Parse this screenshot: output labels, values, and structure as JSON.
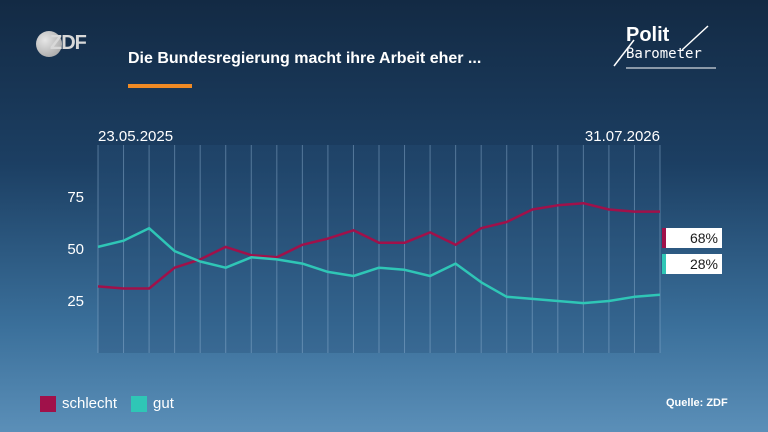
{
  "header": {
    "title": "Die Bundesregierung macht ihre Arbeit eher ...",
    "brand_left": "ZDF",
    "brand_right_line1": "Polit",
    "brand_right_line2": "Barometer"
  },
  "footer": {
    "source": "Quelle: ZDF"
  },
  "colors": {
    "accent": "#f08a24",
    "schlecht": "#a0114a",
    "gut": "#2fc6b6"
  },
  "end_labels": {
    "schlecht": "68%",
    "gut": "28%"
  },
  "chart_data": {
    "type": "line",
    "x_start_label": "23.05.2025",
    "x_end_label": "31.07.2026",
    "y_ticks": [
      "25",
      "50",
      "75"
    ],
    "ylim": [
      0,
      100
    ],
    "grid": true,
    "legend_position": "bottom-left",
    "series": [
      {
        "name": "schlecht",
        "values": [
          32,
          31,
          31,
          41,
          45,
          51,
          47,
          46,
          52,
          55,
          59,
          53,
          53,
          58,
          52,
          60,
          63,
          69,
          71,
          72,
          69,
          68,
          68
        ]
      },
      {
        "name": "gut",
        "values": [
          51,
          54,
          60,
          49,
          44,
          41,
          46,
          45,
          43,
          39,
          37,
          41,
          40,
          37,
          43,
          34,
          27,
          26,
          25,
          24,
          25,
          27,
          28
        ]
      }
    ]
  }
}
